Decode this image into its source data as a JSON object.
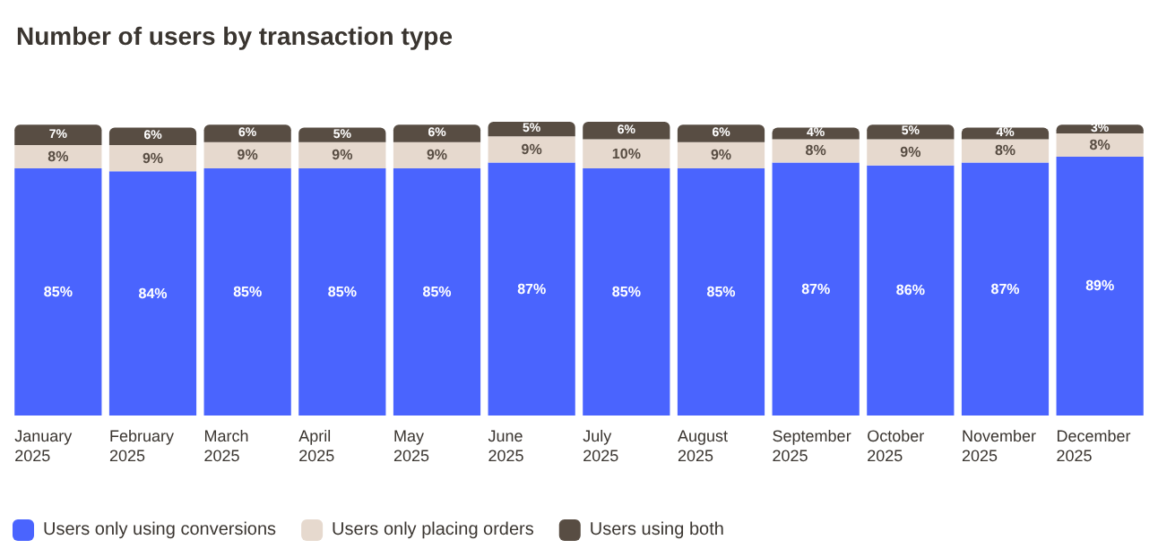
{
  "chart_data": {
    "type": "bar",
    "title": "Number of users by transaction type",
    "stacked": true,
    "legend": "bottom left",
    "categories": [
      "January 2025",
      "February 2025",
      "March 2025",
      "April 2025",
      "May 2025",
      "June 2025",
      "July 2025",
      "August 2025",
      "September 2025",
      "October 2025",
      "November 2025",
      "December 2025"
    ],
    "series": [
      {
        "name": "Users only using conversions",
        "color": "#4a64fe",
        "values": [
          85,
          84,
          85,
          85,
          85,
          87,
          85,
          85,
          87,
          86,
          87,
          89
        ],
        "value_labels": [
          "85%",
          "84%",
          "85%",
          "85%",
          "85%",
          "87%",
          "85%",
          "85%",
          "87%",
          "86%",
          "87%",
          "89%"
        ]
      },
      {
        "name": "Users only placing orders",
        "color": "#e6d9ce",
        "values": [
          8,
          9,
          9,
          9,
          9,
          9,
          10,
          9,
          8,
          9,
          8,
          8
        ],
        "value_labels": [
          "8%",
          "9%",
          "9%",
          "9%",
          "9%",
          "9%",
          "10%",
          "9%",
          "8%",
          "9%",
          "8%",
          "8%"
        ]
      },
      {
        "name": "Users using both",
        "color": "#584d43",
        "values": [
          7,
          6,
          6,
          5,
          6,
          5,
          6,
          6,
          4,
          5,
          4,
          3
        ],
        "value_labels": [
          "7%",
          "6%",
          "6%",
          "5%",
          "6%",
          "5%",
          "6%",
          "6%",
          "4%",
          "5%",
          "4%",
          "3%"
        ]
      }
    ]
  }
}
